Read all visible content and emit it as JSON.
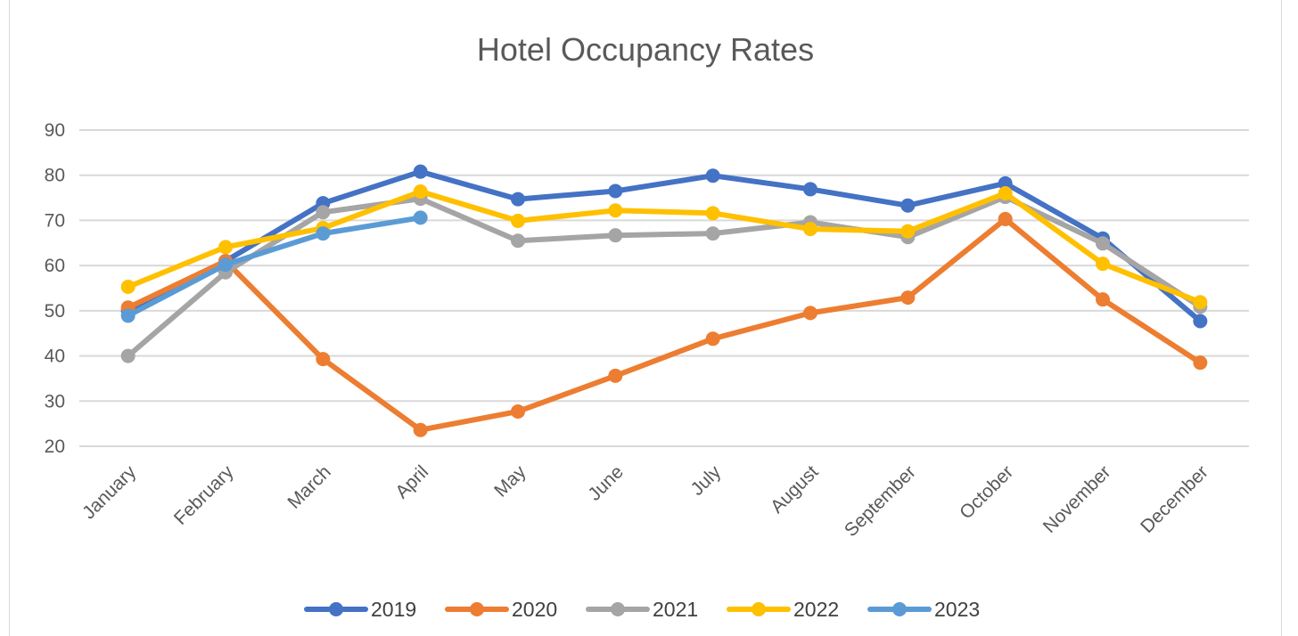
{
  "chart_data": {
    "type": "line",
    "title": "Hotel Occupancy Rates",
    "xlabel": "",
    "ylabel": "",
    "ylim": [
      20,
      90
    ],
    "yticks": [
      20,
      30,
      40,
      50,
      60,
      70,
      80,
      90
    ],
    "grid": true,
    "legend_position": "bottom",
    "categories": [
      "January",
      "February",
      "March",
      "April",
      "May",
      "June",
      "July",
      "August",
      "September",
      "October",
      "November",
      "December"
    ],
    "series": [
      {
        "name": "2019",
        "color": "#4472C4",
        "values": [
          50,
          61,
          73.8,
          80.8,
          74.7,
          76.5,
          79.9,
          76.9,
          73.3,
          78.2,
          66,
          47.7
        ]
      },
      {
        "name": "2020",
        "color": "#ED7D31",
        "values": [
          50.7,
          61,
          39.3,
          23.6,
          27.7,
          35.6,
          43.8,
          49.5,
          52.9,
          70.3,
          52.5,
          38.5
        ]
      },
      {
        "name": "2021",
        "color": "#A5A5A5",
        "values": [
          40,
          58.5,
          71.8,
          74.8,
          65.5,
          66.7,
          67.1,
          69.6,
          66.3,
          75.2,
          64.9,
          50.9
        ]
      },
      {
        "name": "2022",
        "color": "#FFC000",
        "values": [
          55.3,
          64.1,
          68.3,
          76.4,
          69.9,
          72.2,
          71.6,
          68.1,
          67.6,
          76,
          60.4,
          51.9
        ]
      },
      {
        "name": "2023",
        "color": "#5B9BD5",
        "values": [
          48.9,
          60.2,
          67.1,
          70.6,
          null,
          null,
          null,
          null,
          null,
          null,
          null,
          null
        ]
      }
    ]
  }
}
